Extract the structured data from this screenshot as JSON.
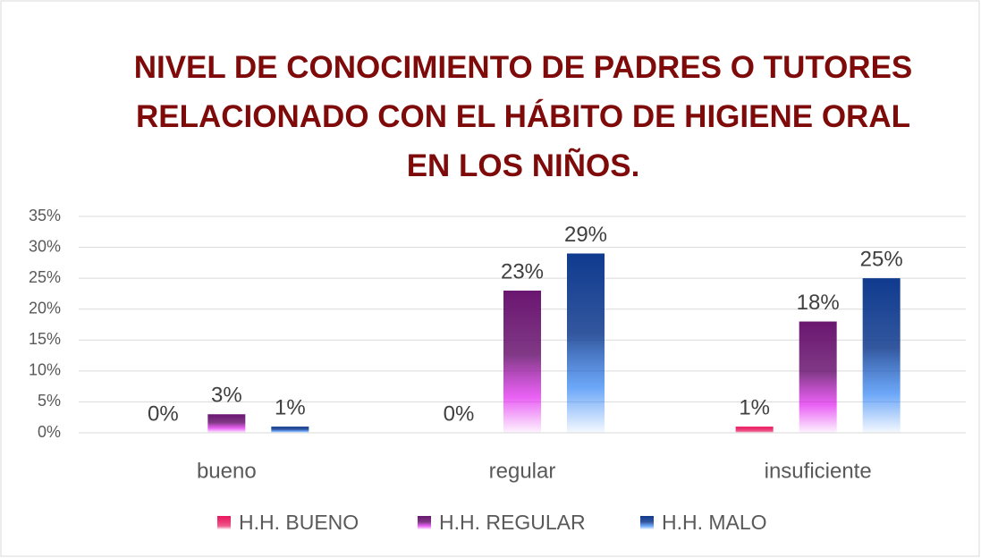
{
  "chart_data": {
    "type": "bar",
    "title": "NIVEL DE CONOCIMIENTO DE PADRES O TUTORES RELACIONADO CON EL HÁBITO DE HIGIENE ORAL EN LOS NIÑOS.",
    "categories": [
      "bueno",
      "regular",
      "insuficiente"
    ],
    "series": [
      {
        "name": "H.H. BUENO",
        "color": "#e8175d",
        "values": [
          0,
          0,
          1
        ],
        "value_labels": [
          "0%",
          "0%",
          "1%"
        ]
      },
      {
        "name": "H.H. REGULAR",
        "color": "#6a1670",
        "values": [
          3,
          23,
          18
        ],
        "value_labels": [
          "3%",
          "23%",
          "18%"
        ]
      },
      {
        "name": "H.H. MALO",
        "color": "#0f3a8e",
        "values": [
          1,
          29,
          25
        ],
        "value_labels": [
          "1%",
          "29%",
          "25%"
        ]
      }
    ],
    "ylim": [
      0,
      35
    ],
    "yticks": [
      {
        "value": 0,
        "label": "0%"
      },
      {
        "value": 5,
        "label": "5%"
      },
      {
        "value": 10,
        "label": "10%"
      },
      {
        "value": 15,
        "label": "15%"
      },
      {
        "value": 20,
        "label": "20%"
      },
      {
        "value": 25,
        "label": "25%"
      },
      {
        "value": 30,
        "label": "30%"
      },
      {
        "value": 35,
        "label": "35%"
      }
    ],
    "grid": true,
    "legend": "bottom"
  }
}
